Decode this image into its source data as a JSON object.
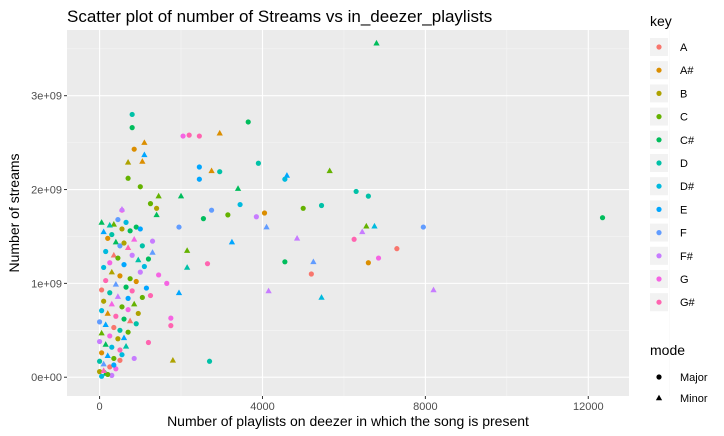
{
  "chart_data": {
    "type": "scatter",
    "title": "Scatter plot of number of Streams vs in_deezer_playlists",
    "xlabel": "Number of playlists on deezer in which the song is present",
    "ylabel": "Number of streams",
    "xlim": [
      -800,
      13000
    ],
    "ylim": [
      -200000000.0,
      3700000000.0
    ],
    "x_ticks": [
      0,
      4000,
      8000,
      12000
    ],
    "x_tick_labels": [
      "0",
      "4000",
      "8000",
      "12000"
    ],
    "y_ticks": [
      0,
      1000000000.0,
      2000000000.0,
      3000000000.0
    ],
    "y_tick_labels": [
      "0e+00",
      "1e+09",
      "2e+09",
      "3e+09"
    ],
    "grid": true,
    "legend_placement": "right",
    "colors": {
      "panel_background": "#ebebeb",
      "grid_major": "#ffffff",
      "grid_minor": "#f5f5f5"
    },
    "color_legend": {
      "title": "key",
      "entries": [
        {
          "label": "A",
          "color": "#F8766D"
        },
        {
          "label": "A#",
          "color": "#DB8E00"
        },
        {
          "label": "B",
          "color": "#AEA200"
        },
        {
          "label": "C",
          "color": "#64B200"
        },
        {
          "label": "C#",
          "color": "#00BD5C"
        },
        {
          "label": "D",
          "color": "#00C1A7"
        },
        {
          "label": "D#",
          "color": "#00BADE"
        },
        {
          "label": "E",
          "color": "#00A6FF"
        },
        {
          "label": "F",
          "color": "#619CFF"
        },
        {
          "label": "F#",
          "color": "#C77CFF"
        },
        {
          "label": "G",
          "color": "#F564E3"
        },
        {
          "label": "G#",
          "color": "#FF64B0"
        }
      ]
    },
    "shape_legend": {
      "title": "mode",
      "entries": [
        {
          "label": "Major",
          "shape": "circle"
        },
        {
          "label": "Minor",
          "shape": "triangle"
        }
      ]
    },
    "points": [
      {
        "x": 6800,
        "y": 3560000000.0,
        "key": "C#",
        "mode": "Minor"
      },
      {
        "x": 800,
        "y": 2800000000.0,
        "key": "D",
        "mode": "Major"
      },
      {
        "x": 800,
        "y": 2660000000.0,
        "key": "C#",
        "mode": "Major"
      },
      {
        "x": 3650,
        "y": 2720000000.0,
        "key": "C#",
        "mode": "Major"
      },
      {
        "x": 2950,
        "y": 2600000000.0,
        "key": "A#",
        "mode": "Minor"
      },
      {
        "x": 2050,
        "y": 2570000000.0,
        "key": "G",
        "mode": "Major"
      },
      {
        "x": 2200,
        "y": 2580000000.0,
        "key": "G#",
        "mode": "Major"
      },
      {
        "x": 2450,
        "y": 2570000000.0,
        "key": "G#",
        "mode": "Major"
      },
      {
        "x": 1100,
        "y": 2500000000.0,
        "key": "A#",
        "mode": "Minor"
      },
      {
        "x": 850,
        "y": 2430000000.0,
        "key": "A#",
        "mode": "Major"
      },
      {
        "x": 1100,
        "y": 2370000000.0,
        "key": "E",
        "mode": "Minor"
      },
      {
        "x": 700,
        "y": 2290000000.0,
        "key": "B",
        "mode": "Minor"
      },
      {
        "x": 1050,
        "y": 2300000000.0,
        "key": "A#",
        "mode": "Minor"
      },
      {
        "x": 3900,
        "y": 2280000000.0,
        "key": "D",
        "mode": "Major"
      },
      {
        "x": 2450,
        "y": 2240000000.0,
        "key": "E",
        "mode": "Major"
      },
      {
        "x": 2750,
        "y": 2200000000.0,
        "key": "A#",
        "mode": "Minor"
      },
      {
        "x": 2950,
        "y": 2190000000.0,
        "key": "D",
        "mode": "Major"
      },
      {
        "x": 5650,
        "y": 2200000000.0,
        "key": "C",
        "mode": "Minor"
      },
      {
        "x": 4600,
        "y": 2150000000.0,
        "key": "E",
        "mode": "Minor"
      },
      {
        "x": 2450,
        "y": 2110000000.0,
        "key": "E",
        "mode": "Major"
      },
      {
        "x": 4550,
        "y": 2110000000.0,
        "key": "D#",
        "mode": "Major"
      },
      {
        "x": 700,
        "y": 2120000000.0,
        "key": "C",
        "mode": "Major"
      },
      {
        "x": 1000,
        "y": 2030000000.0,
        "key": "C",
        "mode": "Major"
      },
      {
        "x": 3400,
        "y": 2010000000.0,
        "key": "C#",
        "mode": "Minor"
      },
      {
        "x": 6300,
        "y": 1980000000.0,
        "key": "D",
        "mode": "Major"
      },
      {
        "x": 6600,
        "y": 1930000000.0,
        "key": "D",
        "mode": "Major"
      },
      {
        "x": 1450,
        "y": 1930000000.0,
        "key": "C",
        "mode": "Minor"
      },
      {
        "x": 2000,
        "y": 1930000000.0,
        "key": "C#",
        "mode": "Minor"
      },
      {
        "x": 1250,
        "y": 1850000000.0,
        "key": "C",
        "mode": "Major"
      },
      {
        "x": 5450,
        "y": 1830000000.0,
        "key": "D",
        "mode": "Major"
      },
      {
        "x": 3450,
        "y": 1840000000.0,
        "key": "D#",
        "mode": "Major"
      },
      {
        "x": 5000,
        "y": 1800000000.0,
        "key": "C",
        "mode": "Major"
      },
      {
        "x": 1400,
        "y": 1800000000.0,
        "key": "B",
        "mode": "Major"
      },
      {
        "x": 2750,
        "y": 1780000000.0,
        "key": "F",
        "mode": "Major"
      },
      {
        "x": 4050,
        "y": 1750000000.0,
        "key": "A#",
        "mode": "Major"
      },
      {
        "x": 3850,
        "y": 1710000000.0,
        "key": "F#",
        "mode": "Major"
      },
      {
        "x": 3150,
        "y": 1730000000.0,
        "key": "C",
        "mode": "Major"
      },
      {
        "x": 2550,
        "y": 1690000000.0,
        "key": "C#",
        "mode": "Major"
      },
      {
        "x": 1400,
        "y": 1730000000.0,
        "key": "C#",
        "mode": "Minor"
      },
      {
        "x": 12350,
        "y": 1700000000.0,
        "key": "C#",
        "mode": "Major"
      },
      {
        "x": 550,
        "y": 1780000000.0,
        "key": "G",
        "mode": "Major"
      },
      {
        "x": 550,
        "y": 1790000000.0,
        "key": "F#",
        "mode": "Minor"
      },
      {
        "x": 50,
        "y": 1650000000.0,
        "key": "C#",
        "mode": "Minor"
      },
      {
        "x": 350,
        "y": 1630000000.0,
        "key": "C",
        "mode": "Minor"
      },
      {
        "x": 900,
        "y": 1600000000.0,
        "key": "C#",
        "mode": "Major"
      },
      {
        "x": 1000,
        "y": 1580000000.0,
        "key": "E",
        "mode": "Major"
      },
      {
        "x": 1950,
        "y": 1600000000.0,
        "key": "F",
        "mode": "Major"
      },
      {
        "x": 6750,
        "y": 1610000000.0,
        "key": "D#",
        "mode": "Minor"
      },
      {
        "x": 6550,
        "y": 1610000000.0,
        "key": "C",
        "mode": "Minor"
      },
      {
        "x": 7950,
        "y": 1600000000.0,
        "key": "F",
        "mode": "Major"
      },
      {
        "x": 4100,
        "y": 1600000000.0,
        "key": "F",
        "mode": "Minor"
      },
      {
        "x": 6450,
        "y": 1550000000.0,
        "key": "F#",
        "mode": "Minor"
      },
      {
        "x": 4850,
        "y": 1480000000.0,
        "key": "F#",
        "mode": "Minor"
      },
      {
        "x": 1300,
        "y": 1450000000.0,
        "key": "F#",
        "mode": "Major"
      },
      {
        "x": 3250,
        "y": 1440000000.0,
        "key": "E",
        "mode": "Minor"
      },
      {
        "x": 6250,
        "y": 1470000000.0,
        "key": "G#",
        "mode": "Major"
      },
      {
        "x": 7300,
        "y": 1370000000.0,
        "key": "A",
        "mode": "Major"
      },
      {
        "x": 2150,
        "y": 1350000000.0,
        "key": "C",
        "mode": "Minor"
      },
      {
        "x": 6850,
        "y": 1270000000.0,
        "key": "G",
        "mode": "Major"
      },
      {
        "x": 6600,
        "y": 1220000000.0,
        "key": "A#",
        "mode": "Major"
      },
      {
        "x": 4550,
        "y": 1230000000.0,
        "key": "C#",
        "mode": "Major"
      },
      {
        "x": 5250,
        "y": 1230000000.0,
        "key": "F",
        "mode": "Minor"
      },
      {
        "x": 2650,
        "y": 1210000000.0,
        "key": "G#",
        "mode": "Major"
      },
      {
        "x": 2150,
        "y": 1170000000.0,
        "key": "D",
        "mode": "Minor"
      },
      {
        "x": 5200,
        "y": 1100000000.0,
        "key": "A",
        "mode": "Major"
      },
      {
        "x": 1450,
        "y": 1090000000.0,
        "key": "G",
        "mode": "Major"
      },
      {
        "x": 1650,
        "y": 1000000000.0,
        "key": "G",
        "mode": "Major"
      },
      {
        "x": 4150,
        "y": 920000000.0,
        "key": "F#",
        "mode": "Minor"
      },
      {
        "x": 8200,
        "y": 930000000.0,
        "key": "F#",
        "mode": "Minor"
      },
      {
        "x": 5450,
        "y": 850000000.0,
        "key": "D#",
        "mode": "Minor"
      },
      {
        "x": 1950,
        "y": 900000000.0,
        "key": "E",
        "mode": "Minor"
      },
      {
        "x": 1250,
        "y": 870000000.0,
        "key": "G#",
        "mode": "Major"
      },
      {
        "x": 1750,
        "y": 630000000.0,
        "key": "G",
        "mode": "Major"
      },
      {
        "x": 1750,
        "y": 550000000.0,
        "key": "G#",
        "mode": "Major"
      },
      {
        "x": 900,
        "y": 570000000.0,
        "key": "D",
        "mode": "Major"
      },
      {
        "x": 700,
        "y": 480000000.0,
        "key": "C",
        "mode": "Major"
      },
      {
        "x": 1200,
        "y": 370000000.0,
        "key": "G#",
        "mode": "Major"
      },
      {
        "x": 2700,
        "y": 170000000.0,
        "key": "D",
        "mode": "Major"
      },
      {
        "x": 850,
        "y": 200000000.0,
        "key": "F#",
        "mode": "Major"
      },
      {
        "x": 1800,
        "y": 180000000.0,
        "key": "B",
        "mode": "Minor"
      },
      {
        "x": 550,
        "y": 240000000.0,
        "key": "D#",
        "mode": "Major"
      },
      {
        "x": 600,
        "y": 420000000.0,
        "key": "E",
        "mode": "Minor"
      },
      {
        "x": 100,
        "y": 1550000000.0,
        "key": "E",
        "mode": "Minor"
      },
      {
        "x": 200,
        "y": 1480000000.0,
        "key": "A#",
        "mode": "Major"
      },
      {
        "x": 300,
        "y": 1520000000.0,
        "key": "D",
        "mode": "Major"
      },
      {
        "x": 400,
        "y": 1440000000.0,
        "key": "C#",
        "mode": "Minor"
      },
      {
        "x": 500,
        "y": 1400000000.0,
        "key": "F",
        "mode": "Major"
      },
      {
        "x": 600,
        "y": 1430000000.0,
        "key": "B",
        "mode": "Major"
      },
      {
        "x": 700,
        "y": 1380000000.0,
        "key": "G#",
        "mode": "Minor"
      },
      {
        "x": 150,
        "y": 1340000000.0,
        "key": "D#",
        "mode": "Major"
      },
      {
        "x": 350,
        "y": 1300000000.0,
        "key": "A",
        "mode": "Minor"
      },
      {
        "x": 450,
        "y": 1270000000.0,
        "key": "C",
        "mode": "Major"
      },
      {
        "x": 800,
        "y": 1300000000.0,
        "key": "F#",
        "mode": "Major"
      },
      {
        "x": 950,
        "y": 1250000000.0,
        "key": "D",
        "mode": "Minor"
      },
      {
        "x": 250,
        "y": 1220000000.0,
        "key": "G",
        "mode": "Major"
      },
      {
        "x": 600,
        "y": 1200000000.0,
        "key": "E",
        "mode": "Major"
      },
      {
        "x": 100,
        "y": 1170000000.0,
        "key": "D#",
        "mode": "Major"
      },
      {
        "x": 300,
        "y": 1120000000.0,
        "key": "B",
        "mode": "Minor"
      },
      {
        "x": 500,
        "y": 1080000000.0,
        "key": "A#",
        "mode": "Major"
      },
      {
        "x": 750,
        "y": 1050000000.0,
        "key": "C",
        "mode": "Major"
      },
      {
        "x": 150,
        "y": 1030000000.0,
        "key": "G#",
        "mode": "Major"
      },
      {
        "x": 400,
        "y": 990000000.0,
        "key": "F",
        "mode": "Minor"
      },
      {
        "x": 650,
        "y": 960000000.0,
        "key": "C#",
        "mode": "Major"
      },
      {
        "x": 50,
        "y": 930000000.0,
        "key": "A",
        "mode": "Major"
      },
      {
        "x": 250,
        "y": 900000000.0,
        "key": "D",
        "mode": "Major"
      },
      {
        "x": 450,
        "y": 860000000.0,
        "key": "F#",
        "mode": "Minor"
      },
      {
        "x": 700,
        "y": 840000000.0,
        "key": "E",
        "mode": "Major"
      },
      {
        "x": 100,
        "y": 810000000.0,
        "key": "B",
        "mode": "Major"
      },
      {
        "x": 300,
        "y": 780000000.0,
        "key": "G",
        "mode": "Minor"
      },
      {
        "x": 550,
        "y": 750000000.0,
        "key": "C",
        "mode": "Major"
      },
      {
        "x": 50,
        "y": 710000000.0,
        "key": "D#",
        "mode": "Major"
      },
      {
        "x": 200,
        "y": 680000000.0,
        "key": "A#",
        "mode": "Minor"
      },
      {
        "x": 400,
        "y": 650000000.0,
        "key": "G#",
        "mode": "Major"
      },
      {
        "x": 600,
        "y": 620000000.0,
        "key": "C#",
        "mode": "Major"
      },
      {
        "x": 0,
        "y": 590000000.0,
        "key": "F",
        "mode": "Major"
      },
      {
        "x": 150,
        "y": 560000000.0,
        "key": "E",
        "mode": "Minor"
      },
      {
        "x": 350,
        "y": 530000000.0,
        "key": "A",
        "mode": "Major"
      },
      {
        "x": 500,
        "y": 500000000.0,
        "key": "D",
        "mode": "Major"
      },
      {
        "x": 50,
        "y": 470000000.0,
        "key": "C",
        "mode": "Minor"
      },
      {
        "x": 250,
        "y": 440000000.0,
        "key": "G",
        "mode": "Major"
      },
      {
        "x": 450,
        "y": 410000000.0,
        "key": "B",
        "mode": "Major"
      },
      {
        "x": 0,
        "y": 380000000.0,
        "key": "F#",
        "mode": "Major"
      },
      {
        "x": 150,
        "y": 350000000.0,
        "key": "C#",
        "mode": "Minor"
      },
      {
        "x": 300,
        "y": 320000000.0,
        "key": "D#",
        "mode": "Major"
      },
      {
        "x": 500,
        "y": 290000000.0,
        "key": "G#",
        "mode": "Major"
      },
      {
        "x": 50,
        "y": 260000000.0,
        "key": "A#",
        "mode": "Major"
      },
      {
        "x": 200,
        "y": 230000000.0,
        "key": "E",
        "mode": "Minor"
      },
      {
        "x": 350,
        "y": 200000000.0,
        "key": "C",
        "mode": "Major"
      },
      {
        "x": 0,
        "y": 170000000.0,
        "key": "D",
        "mode": "Major"
      },
      {
        "x": 100,
        "y": 140000000.0,
        "key": "F",
        "mode": "Minor"
      },
      {
        "x": 250,
        "y": 110000000.0,
        "key": "A",
        "mode": "Major"
      },
      {
        "x": 400,
        "y": 90000000.0,
        "key": "G",
        "mode": "Major"
      },
      {
        "x": 0,
        "y": 60000000.0,
        "key": "B",
        "mode": "Major"
      },
      {
        "x": 150,
        "y": 40000000.0,
        "key": "C#",
        "mode": "Minor"
      },
      {
        "x": 300,
        "y": 20000000.0,
        "key": "F#",
        "mode": "Major"
      },
      {
        "x": 50,
        "y": 10000000.0,
        "key": "D#",
        "mode": "Major"
      },
      {
        "x": 200,
        "y": 30000000.0,
        "key": "C",
        "mode": "Major"
      },
      {
        "x": 100,
        "y": 70000000.0,
        "key": "G#",
        "mode": "Minor"
      },
      {
        "x": 350,
        "y": 130000000.0,
        "key": "E",
        "mode": "Major"
      },
      {
        "x": 500,
        "y": 180000000.0,
        "key": "A",
        "mode": "Major"
      },
      {
        "x": 650,
        "y": 330000000.0,
        "key": "D",
        "mode": "Minor"
      },
      {
        "x": 700,
        "y": 720000000.0,
        "key": "G",
        "mode": "Major"
      },
      {
        "x": 850,
        "y": 780000000.0,
        "key": "C",
        "mode": "Minor"
      },
      {
        "x": 900,
        "y": 1020000000.0,
        "key": "A#",
        "mode": "Major"
      },
      {
        "x": 1000,
        "y": 1120000000.0,
        "key": "F#",
        "mode": "Major"
      },
      {
        "x": 1100,
        "y": 1180000000.0,
        "key": "D#",
        "mode": "Major"
      },
      {
        "x": 1200,
        "y": 1260000000.0,
        "key": "C#",
        "mode": "Major"
      },
      {
        "x": 1300,
        "y": 1330000000.0,
        "key": "F",
        "mode": "Minor"
      },
      {
        "x": 800,
        "y": 920000000.0,
        "key": "G#",
        "mode": "Major"
      },
      {
        "x": 950,
        "y": 680000000.0,
        "key": "B",
        "mode": "Major"
      },
      {
        "x": 1050,
        "y": 850000000.0,
        "key": "C",
        "mode": "Major"
      },
      {
        "x": 1150,
        "y": 950000000.0,
        "key": "E",
        "mode": "Major"
      },
      {
        "x": 750,
        "y": 600000000.0,
        "key": "A",
        "mode": "Minor"
      },
      {
        "x": 650,
        "y": 1650000000.0,
        "key": "D#",
        "mode": "Major"
      },
      {
        "x": 750,
        "y": 1560000000.0,
        "key": "C#",
        "mode": "Major"
      },
      {
        "x": 850,
        "y": 1470000000.0,
        "key": "G",
        "mode": "Minor"
      },
      {
        "x": 1050,
        "y": 1400000000.0,
        "key": "D",
        "mode": "Major"
      },
      {
        "x": 550,
        "y": 1580000000.0,
        "key": "B",
        "mode": "Major"
      },
      {
        "x": 450,
        "y": 1680000000.0,
        "key": "F",
        "mode": "Major"
      },
      {
        "x": 250,
        "y": 1620000000.0,
        "key": "D",
        "mode": "Minor"
      }
    ]
  }
}
